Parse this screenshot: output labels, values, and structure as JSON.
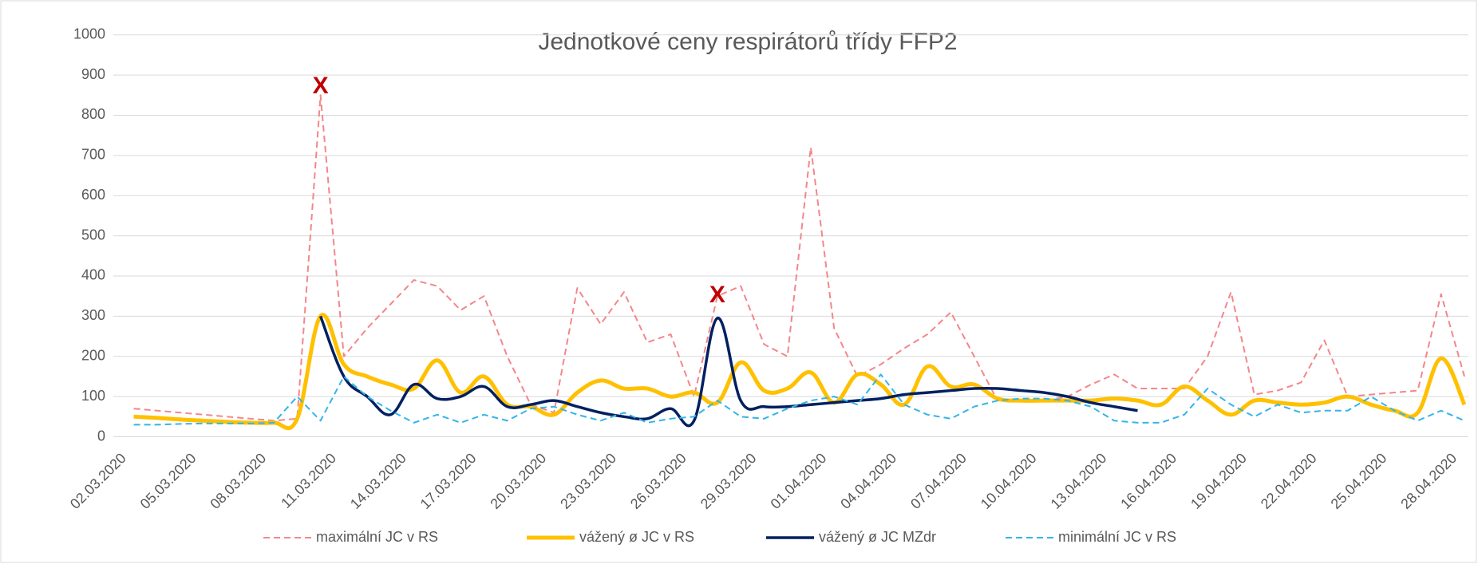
{
  "chart_data": {
    "type": "line",
    "title": "Jednotkové ceny respirátorů třídy FFP2",
    "categories": [
      "02.03.2020",
      null,
      null,
      "05.03.2020",
      null,
      null,
      "08.03.2020",
      null,
      null,
      "11.03.2020",
      null,
      null,
      "14.03.2020",
      null,
      null,
      "17.03.2020",
      null,
      null,
      "20.03.2020",
      null,
      null,
      "23.03.2020",
      null,
      null,
      "26.03.2020",
      null,
      null,
      "29.03.2020",
      null,
      null,
      "01.04.2020",
      null,
      null,
      "04.04.2020",
      null,
      null,
      "07.04.2020",
      null,
      null,
      "10.04.2020",
      null,
      null,
      "13.04.2020",
      null,
      null,
      "16.04.2020",
      null,
      null,
      "19.04.2020",
      null,
      null,
      "22.04.2020",
      null,
      null,
      "25.04.2020",
      null,
      null,
      "28.04.2020"
    ],
    "series": [
      {
        "name": "maximální JC v RS",
        "color": "#f4868a",
        "dash": true,
        "width": 2,
        "values": [
          70,
          65,
          60,
          55,
          50,
          45,
          40,
          45,
          850,
          200,
          270,
          330,
          390,
          375,
          315,
          350,
          200,
          80,
          60,
          370,
          280,
          360,
          235,
          255,
          100,
          350,
          375,
          230,
          200,
          720,
          270,
          150,
          180,
          220,
          255,
          310,
          200,
          90,
          90,
          90,
          100,
          130,
          155,
          120,
          120,
          120,
          200,
          360,
          105,
          115,
          135,
          240,
          100,
          105,
          110,
          115,
          355,
          150
        ]
      },
      {
        "name": "vážený ø JC v RS",
        "color": "#ffc000",
        "dash": false,
        "width": 5,
        "values": [
          50,
          47,
          43,
          40,
          37,
          35,
          35,
          45,
          300,
          180,
          150,
          130,
          120,
          190,
          110,
          150,
          80,
          75,
          55,
          110,
          140,
          120,
          120,
          100,
          110,
          85,
          185,
          115,
          120,
          160,
          85,
          155,
          130,
          80,
          175,
          125,
          130,
          95,
          90,
          90,
          90,
          90,
          95,
          90,
          80,
          125,
          90,
          55,
          90,
          85,
          80,
          85,
          100,
          80,
          65,
          60,
          195,
          80
        ]
      },
      {
        "name": "vážený ø JC MZdr",
        "color": "#002060",
        "dash": false,
        "width": 3.5,
        "values": [
          null,
          null,
          null,
          null,
          null,
          null,
          null,
          null,
          300,
          150,
          100,
          55,
          130,
          95,
          100,
          125,
          75,
          80,
          90,
          75,
          60,
          50,
          45,
          70,
          40,
          295,
          90,
          75,
          75,
          80,
          85,
          90,
          95,
          105,
          110,
          115,
          120,
          120,
          115,
          110,
          100,
          85,
          75,
          65,
          null,
          null,
          null,
          null,
          null,
          null,
          null,
          null,
          null,
          null,
          null,
          null,
          null,
          null
        ]
      },
      {
        "name": "minimální JC v RS",
        "color": "#33b5e8",
        "dash": true,
        "width": 2,
        "values": [
          30,
          30,
          32,
          33,
          33,
          33,
          35,
          100,
          40,
          150,
          100,
          65,
          35,
          55,
          35,
          55,
          40,
          70,
          75,
          55,
          40,
          60,
          35,
          45,
          50,
          90,
          50,
          45,
          70,
          90,
          100,
          80,
          155,
          80,
          55,
          45,
          75,
          90,
          95,
          95,
          90,
          75,
          40,
          35,
          35,
          55,
          120,
          80,
          50,
          80,
          60,
          65,
          65,
          100,
          65,
          40,
          65,
          40
        ]
      }
    ],
    "ylim": [
      0,
      1000
    ],
    "yticks": [
      0,
      100,
      200,
      300,
      400,
      500,
      600,
      700,
      800,
      900,
      1000
    ],
    "grid": true,
    "legend": "bottom",
    "annotations": [
      {
        "text": "X",
        "x": 8,
        "y": 870,
        "color": "#c00000"
      },
      {
        "text": "X",
        "x": 25,
        "y": 350,
        "color": "#c00000"
      }
    ]
  }
}
